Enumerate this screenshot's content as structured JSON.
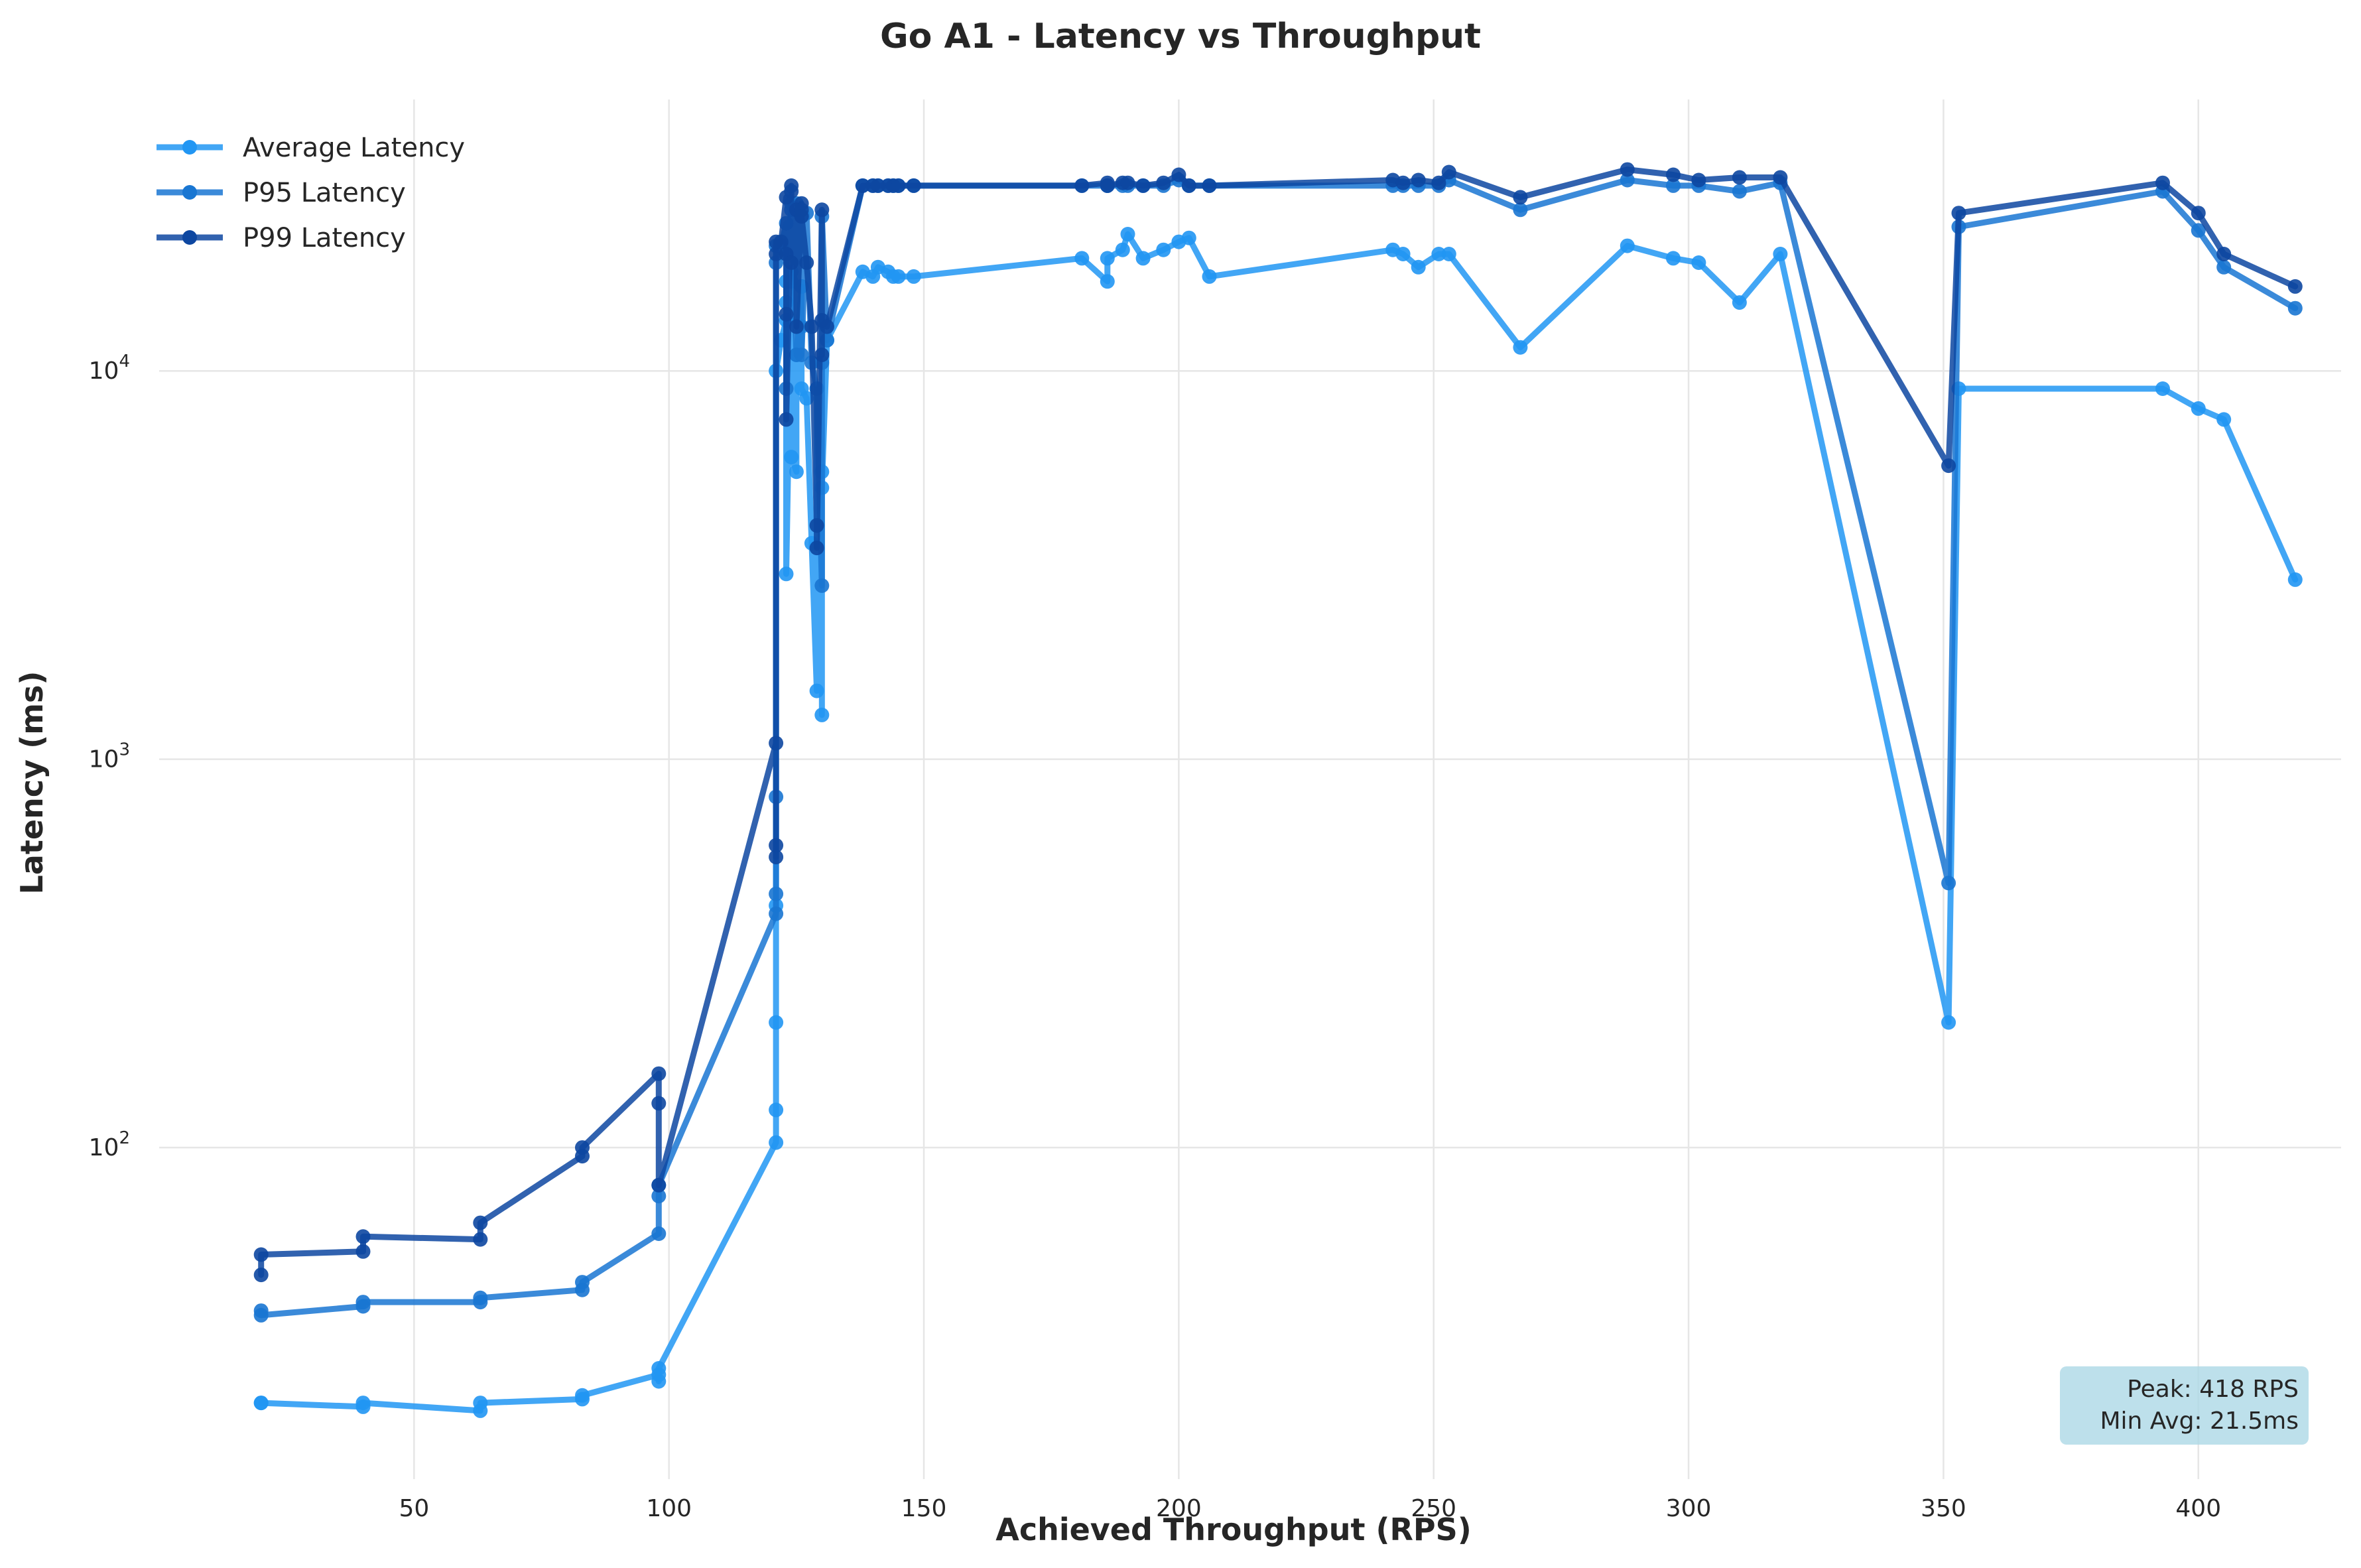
{
  "chart_data": {
    "type": "line",
    "title": "Go A1 - Latency vs Throughput",
    "xlabel": "Achieved Throughput (RPS)",
    "ylabel": "Latency (ms)",
    "xlim": [
      0,
      428
    ],
    "ylim": [
      14,
      50000
    ],
    "yscale": "log",
    "grid": true,
    "legend_position": "top-left",
    "x_ticks": [
      {
        "value": 50,
        "label": "50"
      },
      {
        "value": 100,
        "label": "100"
      },
      {
        "value": 150,
        "label": "150"
      },
      {
        "value": 200,
        "label": "200"
      },
      {
        "value": 250,
        "label": "250"
      },
      {
        "value": 300,
        "label": "300"
      },
      {
        "value": 350,
        "label": "350"
      },
      {
        "value": 400,
        "label": "400"
      }
    ],
    "y_ticks": [
      {
        "value": 100,
        "base": "10",
        "exp": "2"
      },
      {
        "value": 1000,
        "base": "10",
        "exp": "3"
      },
      {
        "value": 10000,
        "base": "10",
        "exp": "4"
      }
    ],
    "annotation": {
      "lines": [
        "Peak: 418 RPS",
        "Min Avg: 21.5ms"
      ],
      "position": "bottom-right",
      "color": "#add8e6"
    },
    "series": [
      {
        "name": "Average Latency",
        "color": "#2196f3",
        "x": [
          20,
          20,
          40,
          40,
          63,
          63,
          83,
          83,
          98,
          98,
          98,
          121,
          121,
          121,
          121,
          121,
          122,
          123,
          123,
          123,
          123,
          124,
          124,
          124,
          125,
          125,
          126,
          126,
          126,
          127,
          128,
          129,
          129,
          130,
          130,
          130,
          131,
          138,
          140,
          141,
          143,
          144,
          145,
          148,
          181,
          186,
          186,
          189,
          190,
          193,
          197,
          200,
          202,
          206,
          242,
          244,
          247,
          251,
          253,
          267,
          288,
          297,
          302,
          310,
          318,
          351,
          353,
          393,
          400,
          405,
          419
        ],
        "y": [
          22,
          22,
          21.5,
          22,
          21,
          22,
          22.5,
          23,
          26,
          25,
          27,
          103,
          125,
          210,
          420,
          10000,
          12000,
          13500,
          17000,
          15000,
          3000,
          17000,
          18000,
          6000,
          5500,
          11000,
          16500,
          13000,
          9000,
          8500,
          3600,
          1500,
          9000,
          5500,
          1300,
          5000,
          12000,
          18000,
          17500,
          18500,
          18000,
          17500,
          17500,
          17500,
          19500,
          17000,
          19500,
          20500,
          22500,
          19500,
          20500,
          21500,
          22000,
          17500,
          20500,
          20000,
          18500,
          20000,
          20000,
          11500,
          21000,
          19500,
          19000,
          15000,
          20000,
          210,
          9000,
          9000,
          8000,
          7500,
          2900
        ]
      },
      {
        "name": "P95 Latency",
        "color": "#1976d2",
        "x": [
          20,
          20,
          40,
          40,
          63,
          63,
          83,
          83,
          98,
          98,
          98,
          121,
          121,
          121,
          121,
          121,
          122,
          123,
          123,
          123,
          124,
          124,
          125,
          125,
          126,
          126,
          127,
          128,
          129,
          130,
          130,
          130,
          131,
          138,
          140,
          141,
          143,
          144,
          145,
          148,
          181,
          186,
          186,
          189,
          190,
          193,
          197,
          200,
          202,
          206,
          242,
          244,
          247,
          251,
          253,
          267,
          288,
          297,
          302,
          310,
          318,
          351,
          353,
          393,
          400,
          405,
          419
        ],
        "y": [
          38,
          37,
          39,
          40,
          40,
          41,
          43,
          45,
          60,
          75,
          80,
          400,
          450,
          800,
          19000,
          21000,
          21000,
          24000,
          9000,
          20000,
          26000,
          27000,
          11000,
          27000,
          25000,
          11000,
          25500,
          10500,
          9000,
          2800,
          10500,
          25000,
          12000,
          30000,
          30000,
          30000,
          30000,
          30000,
          30000,
          30000,
          30000,
          30000,
          30000,
          30000,
          30000,
          30000,
          30000,
          31000,
          30000,
          30000,
          30000,
          30000,
          30000,
          30000,
          31000,
          26000,
          31000,
          30000,
          30000,
          29000,
          30500,
          480,
          23500,
          29000,
          23000,
          18500,
          14500
        ]
      },
      {
        "name": "P99 Latency",
        "color": "#0d47a1",
        "x": [
          20,
          20,
          40,
          40,
          63,
          63,
          83,
          83,
          98,
          98,
          98,
          121,
          121,
          121,
          121,
          121,
          122,
          123,
          123,
          123,
          123,
          124,
          124,
          124,
          125,
          125,
          126,
          126,
          126,
          127,
          128,
          129,
          129,
          130,
          130,
          130,
          131,
          138,
          140,
          141,
          143,
          144,
          145,
          148,
          181,
          186,
          186,
          189,
          190,
          193,
          197,
          200,
          202,
          206,
          242,
          244,
          247,
          251,
          253,
          267,
          288,
          297,
          302,
          310,
          318,
          351,
          353,
          393,
          400,
          405,
          419
        ],
        "y": [
          47,
          53,
          54,
          59,
          58,
          64,
          95,
          100,
          155,
          130,
          80,
          1100,
          560,
          600,
          20000,
          21500,
          21500,
          28000,
          20000,
          14000,
          7500,
          29000,
          30000,
          19000,
          26000,
          13000,
          27000,
          26000,
          25000,
          19000,
          13000,
          4000,
          3500,
          26000,
          11000,
          13500,
          13000,
          30000,
          30000,
          30000,
          30000,
          30000,
          30000,
          30000,
          30000,
          30500,
          30000,
          30500,
          30500,
          30000,
          30500,
          32000,
          30000,
          30000,
          31000,
          30500,
          31000,
          30500,
          32500,
          28000,
          33000,
          32000,
          31000,
          31500,
          31500,
          5700,
          25500,
          30500,
          25500,
          20000,
          16500
        ]
      }
    ]
  }
}
